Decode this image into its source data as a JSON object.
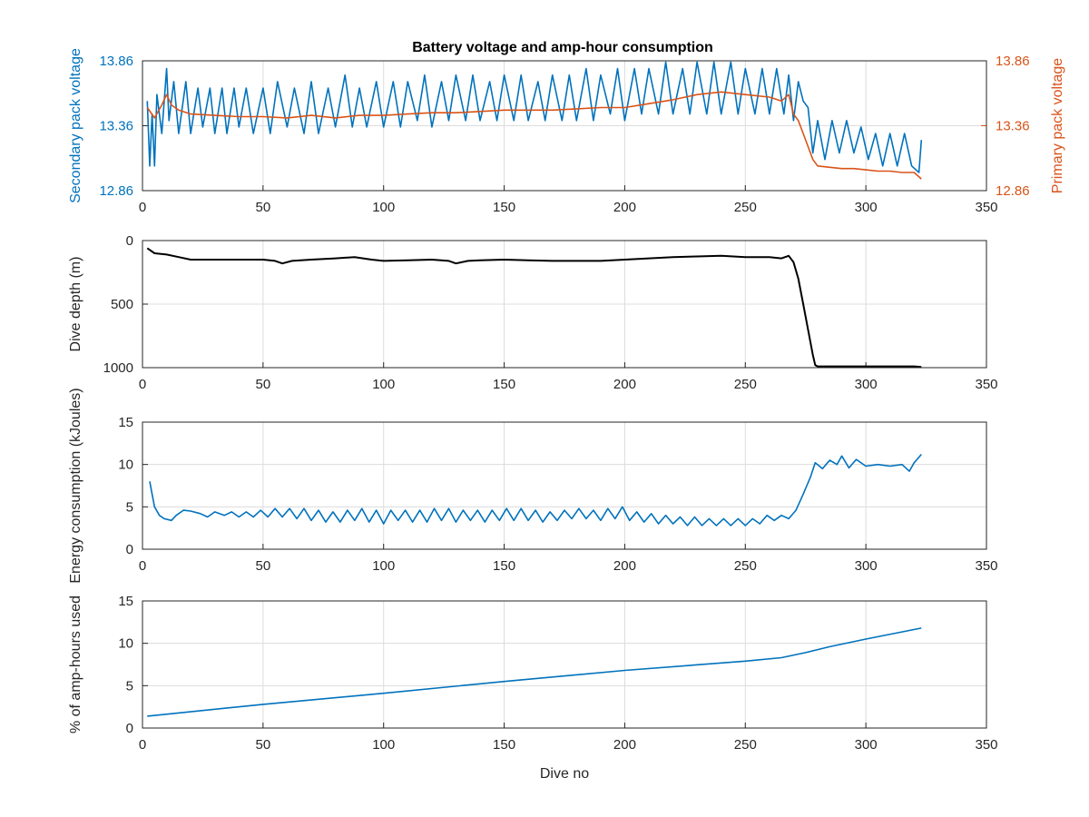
{
  "figure": {
    "title": "Battery voltage and amp-hour consumption",
    "colors": {
      "blue": "#0072BD",
      "orange": "#D95319",
      "black": "#000000",
      "grid": "#dcdcdc",
      "axis": "#262626",
      "panel_background": "#ffffff"
    }
  },
  "chart_data": [
    {
      "type": "line",
      "title": "Battery voltage and amp-hour consumption",
      "xlabel": "",
      "ylabel": "Secondary pack voltage",
      "ylabel_right": "Primary pack voltage",
      "xlim": [
        0,
        350
      ],
      "ylim": [
        12.86,
        13.86
      ],
      "ylim_right": [
        12.86,
        13.86
      ],
      "xticks": [
        0,
        50,
        100,
        150,
        200,
        250,
        300,
        350
      ],
      "yticks": [
        "12.86",
        "13.36",
        "13.86"
      ],
      "yticks_right": [
        "12.86",
        "13.36",
        "13.86"
      ],
      "grid": true,
      "series": [
        {
          "axis": "left",
          "color": "#0072BD",
          "x": [
            2,
            3,
            4,
            5,
            6,
            8,
            10,
            11,
            13,
            15,
            18,
            20,
            23,
            25,
            28,
            30,
            33,
            35,
            38,
            40,
            43,
            46,
            50,
            53,
            56,
            60,
            63,
            67,
            70,
            73,
            77,
            80,
            84,
            87,
            90,
            93,
            97,
            100,
            104,
            107,
            110,
            114,
            117,
            120,
            124,
            127,
            130,
            134,
            137,
            140,
            144,
            147,
            150,
            154,
            157,
            160,
            164,
            167,
            170,
            174,
            177,
            180,
            184,
            187,
            190,
            194,
            197,
            200,
            204,
            207,
            210,
            214,
            217,
            220,
            224,
            227,
            230,
            234,
            237,
            240,
            244,
            247,
            250,
            254,
            257,
            260,
            263,
            266,
            268,
            270,
            272,
            274,
            276,
            278,
            280,
            283,
            286,
            289,
            292,
            295,
            298,
            301,
            304,
            307,
            310,
            313,
            316,
            319,
            322,
            323
          ],
          "y": [
            13.55,
            13.05,
            13.45,
            13.05,
            13.6,
            13.3,
            13.8,
            13.4,
            13.7,
            13.3,
            13.7,
            13.3,
            13.65,
            13.35,
            13.65,
            13.3,
            13.65,
            13.3,
            13.65,
            13.35,
            13.65,
            13.3,
            13.65,
            13.3,
            13.7,
            13.35,
            13.65,
            13.3,
            13.7,
            13.3,
            13.65,
            13.35,
            13.75,
            13.35,
            13.65,
            13.35,
            13.7,
            13.35,
            13.7,
            13.35,
            13.7,
            13.4,
            13.75,
            13.35,
            13.7,
            13.4,
            13.75,
            13.4,
            13.75,
            13.4,
            13.7,
            13.4,
            13.75,
            13.4,
            13.75,
            13.4,
            13.7,
            13.4,
            13.75,
            13.4,
            13.75,
            13.4,
            13.8,
            13.4,
            13.75,
            13.45,
            13.8,
            13.4,
            13.8,
            13.45,
            13.8,
            13.45,
            13.85,
            13.45,
            13.8,
            13.45,
            13.85,
            13.45,
            13.85,
            13.45,
            13.85,
            13.45,
            13.8,
            13.45,
            13.8,
            13.45,
            13.8,
            13.45,
            13.75,
            13.4,
            13.7,
            13.55,
            13.5,
            13.15,
            13.4,
            13.1,
            13.4,
            13.15,
            13.4,
            13.15,
            13.35,
            13.1,
            13.3,
            13.05,
            13.3,
            13.05,
            13.3,
            13.05,
            13.0,
            13.25
          ]
        },
        {
          "axis": "right",
          "color": "#D95319",
          "x": [
            2,
            5,
            8,
            10,
            12,
            15,
            20,
            30,
            40,
            50,
            60,
            70,
            80,
            90,
            100,
            110,
            120,
            130,
            140,
            150,
            160,
            170,
            180,
            190,
            200,
            210,
            220,
            230,
            240,
            250,
            260,
            265,
            268,
            270,
            272,
            274,
            276,
            278,
            280,
            285,
            290,
            295,
            300,
            305,
            310,
            315,
            320,
            323
          ],
          "y": [
            13.5,
            13.42,
            13.52,
            13.6,
            13.52,
            13.48,
            13.45,
            13.44,
            13.43,
            13.43,
            13.42,
            13.44,
            13.42,
            13.44,
            13.44,
            13.45,
            13.46,
            13.46,
            13.47,
            13.48,
            13.48,
            13.48,
            13.49,
            13.5,
            13.5,
            13.53,
            13.56,
            13.6,
            13.62,
            13.6,
            13.58,
            13.55,
            13.6,
            13.45,
            13.4,
            13.3,
            13.2,
            13.1,
            13.05,
            13.04,
            13.03,
            13.03,
            13.02,
            13.01,
            13.01,
            13.0,
            13.0,
            12.95
          ]
        }
      ]
    },
    {
      "type": "line",
      "xlabel": "",
      "ylabel": "Dive depth (m)",
      "xlim": [
        0,
        350
      ],
      "ylim": [
        1000,
        0
      ],
      "y_reversed": true,
      "xticks": [
        0,
        50,
        100,
        150,
        200,
        250,
        300,
        350
      ],
      "yticks": [
        "0",
        "500",
        "1000"
      ],
      "grid": true,
      "series": [
        {
          "color": "#000000",
          "x": [
            2,
            5,
            10,
            15,
            20,
            30,
            40,
            50,
            55,
            58,
            62,
            70,
            80,
            88,
            95,
            100,
            110,
            120,
            127,
            130,
            135,
            140,
            150,
            160,
            170,
            180,
            190,
            200,
            210,
            220,
            230,
            240,
            250,
            260,
            265,
            268,
            270,
            272,
            274,
            276,
            278,
            279,
            280,
            290,
            300,
            310,
            320,
            323
          ],
          "y": [
            60,
            100,
            110,
            130,
            150,
            150,
            150,
            150,
            160,
            180,
            160,
            150,
            140,
            130,
            150,
            160,
            155,
            150,
            160,
            180,
            160,
            155,
            150,
            155,
            160,
            160,
            160,
            150,
            140,
            130,
            125,
            120,
            130,
            130,
            140,
            120,
            170,
            300,
            500,
            700,
            900,
            980,
            990,
            990,
            990,
            990,
            990,
            995
          ]
        }
      ]
    },
    {
      "type": "line",
      "xlabel": "",
      "ylabel": "Energy consumption (kJoules)",
      "xlim": [
        0,
        350
      ],
      "ylim": [
        0,
        15
      ],
      "xticks": [
        0,
        50,
        100,
        150,
        200,
        250,
        300,
        350
      ],
      "yticks": [
        "0",
        "5",
        "10",
        "15"
      ],
      "grid": true,
      "series": [
        {
          "color": "#0072BD",
          "x": [
            3,
            4,
            5,
            7,
            9,
            12,
            14,
            17,
            20,
            24,
            27,
            30,
            34,
            37,
            40,
            43,
            46,
            49,
            52,
            55,
            58,
            61,
            64,
            67,
            70,
            73,
            76,
            79,
            82,
            85,
            88,
            91,
            94,
            97,
            100,
            103,
            106,
            109,
            112,
            115,
            118,
            121,
            124,
            127,
            130,
            133,
            136,
            139,
            142,
            145,
            148,
            151,
            154,
            157,
            160,
            163,
            166,
            169,
            172,
            175,
            178,
            181,
            184,
            187,
            190,
            193,
            196,
            199,
            202,
            205,
            208,
            211,
            214,
            217,
            220,
            223,
            226,
            229,
            232,
            235,
            238,
            241,
            244,
            247,
            250,
            253,
            256,
            259,
            262,
            265,
            268,
            271,
            274,
            277,
            279,
            282,
            285,
            288,
            290,
            293,
            296,
            300,
            305,
            310,
            315,
            318,
            320,
            323
          ],
          "y": [
            8.0,
            6.5,
            5.0,
            4.0,
            3.6,
            3.4,
            4.0,
            4.6,
            4.5,
            4.2,
            3.8,
            4.4,
            4.0,
            4.4,
            3.8,
            4.4,
            3.8,
            4.6,
            3.8,
            4.8,
            3.8,
            4.8,
            3.6,
            4.8,
            3.4,
            4.6,
            3.2,
            4.4,
            3.2,
            4.6,
            3.4,
            4.8,
            3.2,
            4.6,
            3.0,
            4.6,
            3.4,
            4.6,
            3.2,
            4.6,
            3.2,
            4.8,
            3.4,
            4.8,
            3.2,
            4.6,
            3.4,
            4.6,
            3.2,
            4.6,
            3.4,
            4.8,
            3.4,
            4.8,
            3.4,
            4.6,
            3.2,
            4.4,
            3.4,
            4.6,
            3.6,
            4.8,
            3.6,
            4.6,
            3.4,
            4.8,
            3.6,
            5.0,
            3.4,
            4.4,
            3.2,
            4.2,
            3.0,
            4.0,
            3.0,
            3.8,
            2.8,
            3.8,
            2.8,
            3.6,
            2.8,
            3.6,
            2.8,
            3.6,
            2.8,
            3.6,
            3.0,
            4.0,
            3.4,
            4.0,
            3.6,
            4.6,
            6.5,
            8.5,
            10.2,
            9.5,
            10.5,
            10.0,
            11.0,
            9.6,
            10.6,
            9.8,
            10.0,
            9.8,
            10.0,
            9.2,
            10.2,
            11.2
          ]
        }
      ]
    },
    {
      "type": "line",
      "xlabel": "Dive no",
      "ylabel": "% of amp-hours used",
      "xlim": [
        0,
        350
      ],
      "ylim": [
        0,
        15
      ],
      "xticks": [
        0,
        50,
        100,
        150,
        200,
        250,
        300,
        350
      ],
      "yticks": [
        "0",
        "5",
        "10",
        "15"
      ],
      "grid": true,
      "series": [
        {
          "color": "#0072BD",
          "x": [
            2,
            50,
            100,
            150,
            200,
            250,
            265,
            275,
            285,
            300,
            323
          ],
          "y": [
            1.4,
            2.8,
            4.1,
            5.5,
            6.8,
            7.9,
            8.3,
            8.9,
            9.6,
            10.5,
            11.8
          ]
        }
      ]
    }
  ]
}
